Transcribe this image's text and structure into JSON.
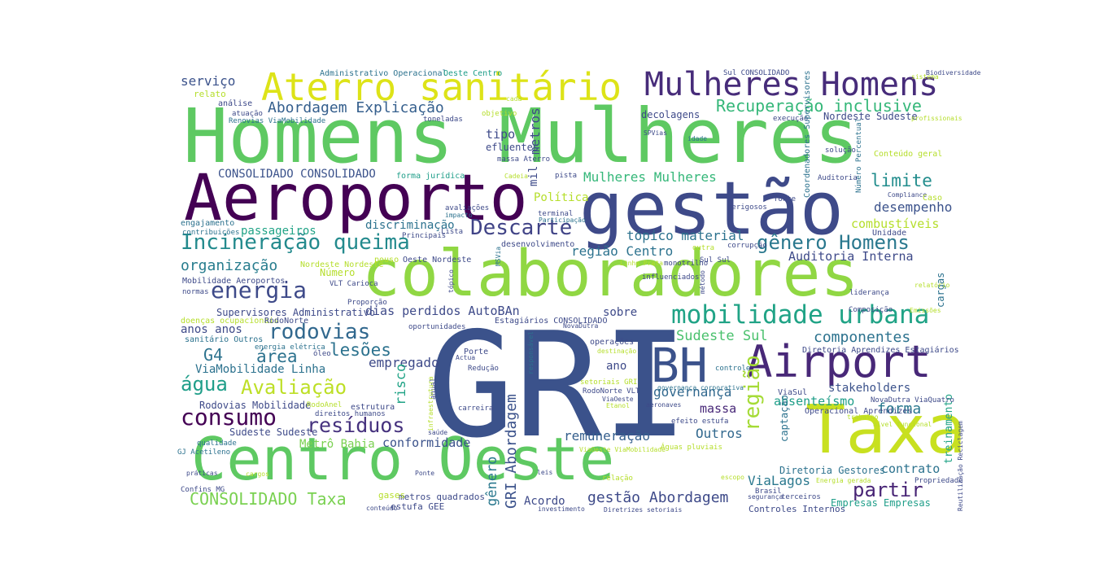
{
  "words": [
    {
      "text": "GRI",
      "color": "#3b528b"
    },
    {
      "text": "Homens Mulheres",
      "color": "#5ec962"
    },
    {
      "text": "colaboradores",
      "color": "#90d743"
    },
    {
      "text": "gestão",
      "color": "#3e4a89"
    },
    {
      "text": "Aeroporto",
      "color": "#440154"
    },
    {
      "text": "Centro Oeste",
      "color": "#5ec962"
    },
    {
      "text": "Taxa",
      "color": "#c8e020"
    },
    {
      "text": "Airport",
      "color": "#482878"
    },
    {
      "text": "BH",
      "color": "#3b528b"
    },
    {
      "text": "Aterro sanitário",
      "color": "#dde318"
    },
    {
      "text": "Mulheres Homens",
      "color": "#472c7a"
    },
    {
      "text": "mobilidade urbana",
      "color": "#20a386"
    },
    {
      "text": "Incineração queima",
      "color": "#238a8d"
    },
    {
      "text": "consumo",
      "color": "#440154"
    },
    {
      "text": "energia",
      "color": "#3e4a89"
    },
    {
      "text": "Descarte",
      "color": "#414487"
    },
    {
      "text": "rodovias",
      "color": "#31688e"
    },
    {
      "text": "gênero Homens",
      "color": "#2a788e"
    },
    {
      "text": "resíduos",
      "color": "#46327e"
    },
    {
      "text": "Avaliação",
      "color": "#bddf26"
    },
    {
      "text": "partir",
      "color": "#482475"
    },
    {
      "text": "água",
      "color": "#1f9e89"
    },
    {
      "text": "CONSOLIDADO Taxa",
      "color": "#7ad151"
    },
    {
      "text": "Recuperação inclusive",
      "color": "#35b779"
    },
    {
      "text": "limite",
      "color": "#228d8d"
    },
    {
      "text": "área",
      "color": "#2c728e"
    },
    {
      "text": "lesões",
      "color": "#2c728e"
    },
    {
      "text": "G4",
      "color": "#2c728e"
    },
    {
      "text": "região",
      "color": "#a5db36"
    },
    {
      "text": "Abordagem Explicação",
      "color": "#355f8d"
    },
    {
      "text": "componentes",
      "color": "#2c728e"
    },
    {
      "text": "forma",
      "color": "#2a788e"
    },
    {
      "text": "organização",
      "color": "#287d8e"
    },
    {
      "text": "GRI Abordagem",
      "color": "#3b528b"
    },
    {
      "text": "gestão Abordagem",
      "color": "#3e4a89"
    },
    {
      "text": "Sudeste Sul",
      "color": "#4ac16d"
    },
    {
      "text": "contrato",
      "color": "#2c728e"
    },
    {
      "text": "gênero",
      "color": "#2a788e"
    },
    {
      "text": "desempenho",
      "color": "#3b528b"
    },
    {
      "text": "Outros",
      "color": "#31688e"
    },
    {
      "text": "governança",
      "color": "#31688e"
    },
    {
      "text": "Mulheres Mulheres",
      "color": "#35b779"
    },
    {
      "text": "tópico material",
      "color": "#2c728e"
    },
    {
      "text": "região Centro",
      "color": "#2c728e"
    },
    {
      "text": "conformidade",
      "color": "#3b528b"
    },
    {
      "text": "empregado",
      "color": "#3e4a89"
    },
    {
      "text": "remuneração",
      "color": "#355f8d"
    },
    {
      "text": "absenteísmo",
      "color": "#1f9e89"
    },
    {
      "text": "ViaLagos",
      "color": "#2a788e"
    },
    {
      "text": "serviço",
      "color": "#3b528b"
    },
    {
      "text": "massa",
      "color": "#482878"
    },
    {
      "text": "dias perdidos AutoBAn",
      "color": "#3e4a89"
    },
    {
      "text": "tipo",
      "color": "#3e4a89"
    },
    {
      "text": "metros",
      "color": "#3e4a89"
    },
    {
      "text": "combustíveis",
      "color": "#b5de2b"
    },
    {
      "text": "Auditoria Interna",
      "color": "#3e4a89"
    },
    {
      "text": "anos anos",
      "color": "#3e4a89"
    },
    {
      "text": "stakeholders",
      "color": "#3b528b"
    },
    {
      "text": "risco",
      "color": "#20a386"
    },
    {
      "text": "CONSOLIDADO CONSOLIDADO",
      "color": "#3b528b"
    },
    {
      "text": "ViaMobilidade Linha",
      "color": "#2c728e"
    },
    {
      "text": "sobre",
      "color": "#3e4a89"
    },
    {
      "text": "discriminação",
      "color": "#2c728e"
    },
    {
      "text": "passageiros",
      "color": "#20a386"
    },
    {
      "text": "Política",
      "color": "#b5de2b"
    },
    {
      "text": "Metrô Bahia",
      "color": "#7ad151"
    },
    {
      "text": "Acordo",
      "color": "#3e4a89"
    },
    {
      "text": "ano",
      "color": "#3e4a89"
    },
    {
      "text": "efluentes",
      "color": "#3e4a89"
    },
    {
      "text": "mil",
      "color": "#3e4a89"
    },
    {
      "text": "treinamento",
      "color": "#20a386"
    },
    {
      "text": "captação",
      "color": "#2c728e"
    },
    {
      "text": "cargas",
      "color": "#2c728e"
    },
    {
      "text": "Rodovias Mobilidade",
      "color": "#3e4a89"
    },
    {
      "text": "Sudeste Sudeste",
      "color": "#3e4a89"
    },
    {
      "text": "Supervisores Administrativo",
      "color": "#3e4a89"
    },
    {
      "text": "Número",
      "color": "#b5de2b"
    },
    {
      "text": "decolagens",
      "color": "#3e4a89"
    },
    {
      "text": "Nordeste Sudeste",
      "color": "#3e4a89"
    },
    {
      "text": "Diretoria Gestores",
      "color": "#2c728e"
    },
    {
      "text": "Empresas Empresas",
      "color": "#1f9e89"
    },
    {
      "text": "estufa GEE",
      "color": "#3e4a89"
    },
    {
      "text": "metros quadrados",
      "color": "#3e4a89"
    },
    {
      "text": "gases",
      "color": "#b5de2b"
    },
    {
      "text": "Controles Internos",
      "color": "#3e4a89"
    },
    {
      "text": "Administrativo Operacional",
      "color": "#2c728e"
    },
    {
      "text": "Oeste Centro",
      "color": "#1f9e89"
    },
    {
      "text": "análise",
      "color": "#3e4a89"
    },
    {
      "text": "relato",
      "color": "#b5de2b"
    },
    {
      "text": "atuação",
      "color": "#3e4a89"
    },
    {
      "text": "Renovias ViaMobilidade",
      "color": "#2c728e"
    },
    {
      "text": "toneladas",
      "color": "#3e4a89"
    },
    {
      "text": "objetivo",
      "color": "#b5de2b"
    },
    {
      "text": "cada",
      "color": "#b5de2b"
    },
    {
      "text": "Sul CONSOLIDADO",
      "color": "#3e4a89"
    },
    {
      "text": "sistema",
      "color": "#b5de2b"
    },
    {
      "text": "Biodiversidade",
      "color": "#3e4a89"
    },
    {
      "text": "execução",
      "color": "#3e4a89"
    },
    {
      "text": "profissionais",
      "color": "#b5de2b"
    },
    {
      "text": "SPVias",
      "color": "#3e4a89"
    },
    {
      "text": "idade",
      "color": "#2c728e"
    },
    {
      "text": "massa Aterro",
      "color": "#3e4a89"
    },
    {
      "text": "solução",
      "color": "#3e4a89"
    },
    {
      "text": "Conteúdo geral",
      "color": "#b5de2b"
    },
    {
      "text": "forma jurídica",
      "color": "#1f9e89"
    },
    {
      "text": "Cadeia",
      "color": "#b5de2b"
    },
    {
      "text": "pista",
      "color": "#3e4a89"
    },
    {
      "text": "Auditoria",
      "color": "#3e4a89"
    },
    {
      "text": "Compliance",
      "color": "#3e4a89"
    },
    {
      "text": "Caso",
      "color": "#b5de2b"
    },
    {
      "text": "fonte",
      "color": "#3e4a89"
    },
    {
      "text": "perigosos",
      "color": "#3e4a89"
    },
    {
      "text": "Unidade",
      "color": "#3e4a89"
    },
    {
      "text": "engajamento",
      "color": "#2c728e"
    },
    {
      "text": "contribuições",
      "color": "#2c728e"
    },
    {
      "text": "Principais",
      "color": "#3e4a89"
    },
    {
      "text": "Lista",
      "color": "#3e4a89"
    },
    {
      "text": "terminal",
      "color": "#3e4a89"
    },
    {
      "text": "Participação",
      "color": "#2c728e"
    },
    {
      "text": "avaliações",
      "color": "#3e4a89"
    },
    {
      "text": "impacto",
      "color": "#2c728e"
    },
    {
      "text": "desenvolvimento",
      "color": "#3e4a89"
    },
    {
      "text": "outra",
      "color": "#b5de2b"
    },
    {
      "text": "corrupção",
      "color": "#3e4a89"
    },
    {
      "text": "Sul Sul",
      "color": "#3e4a89"
    },
    {
      "text": "pouso",
      "color": "#b5de2b"
    },
    {
      "text": "Oeste Nordeste",
      "color": "#3e4a89"
    },
    {
      "text": "Nordeste Nordeste",
      "color": "#b5de2b"
    },
    {
      "text": "Linha Prata",
      "color": "#b5de2b"
    },
    {
      "text": "monotrilho",
      "color": "#3e4a89"
    },
    {
      "text": "influenciados",
      "color": "#3e4a89"
    },
    {
      "text": "liderança",
      "color": "#3e4a89"
    },
    {
      "text": "relatório",
      "color": "#b5de2b"
    },
    {
      "text": "Mobilidade Aeroportos",
      "color": "#3e4a89"
    },
    {
      "text": "VLT Carioca",
      "color": "#3e4a89"
    },
    {
      "text": "normas",
      "color": "#3e4a89"
    },
    {
      "text": "Proporção",
      "color": "#3e4a89"
    },
    {
      "text": "Composição",
      "color": "#3e4a89"
    },
    {
      "text": "Emissões",
      "color": "#b5de2b"
    },
    {
      "text": "doenças ocupacionais",
      "color": "#b5de2b"
    },
    {
      "text": "RodoNorte",
      "color": "#3e4a89"
    },
    {
      "text": "Estagiários CONSOLIDADO",
      "color": "#3e4a89"
    },
    {
      "text": "oportunidades",
      "color": "#3e4a89"
    },
    {
      "text": "NovaDutra",
      "color": "#3e4a89"
    },
    {
      "text": "operações",
      "color": "#3e4a89"
    },
    {
      "text": "destinação",
      "color": "#b5de2b"
    },
    {
      "text": "sanitário Outros",
      "color": "#2c728e"
    },
    {
      "text": "energia elétrica",
      "color": "#2c728e"
    },
    {
      "text": "óleo",
      "color": "#3e4a89"
    },
    {
      "text": "Porte",
      "color": "#3e4a89"
    },
    {
      "text": "Actua",
      "color": "#3e4a89"
    },
    {
      "text": "Diretoria Aprendizes Estagiários",
      "color": "#3e4a89"
    },
    {
      "text": "controle",
      "color": "#2c728e"
    },
    {
      "text": "Redução",
      "color": "#3e4a89"
    },
    {
      "text": "setoriais GRI",
      "color": "#b5de2b"
    },
    {
      "text": "governança corporativa",
      "color": "#2c728e"
    },
    {
      "text": "RodoNorte VLT",
      "color": "#3e4a89"
    },
    {
      "text": "ViaOeste",
      "color": "#3e4a89"
    },
    {
      "text": "Etanol",
      "color": "#b5de2b"
    },
    {
      "text": "aeronaves",
      "color": "#3e4a89"
    },
    {
      "text": "ViaSul",
      "color": "#3e4a89"
    },
    {
      "text": "NovaDutra ViaQuatro",
      "color": "#3e4a89"
    },
    {
      "text": "Operacional Aprendizes",
      "color": "#3e4a89"
    },
    {
      "text": "trabalho",
      "color": "#b5de2b"
    },
    {
      "text": "nível funcional",
      "color": "#b5de2b"
    },
    {
      "text": "RodoAnel",
      "color": "#b5de2b"
    },
    {
      "text": "estrutura",
      "color": "#3e4a89"
    },
    {
      "text": "direitos humanos",
      "color": "#3e4a89"
    },
    {
      "text": "carreira",
      "color": "#3e4a89"
    },
    {
      "text": "efeito estufa",
      "color": "#3e4a89"
    },
    {
      "text": "anual",
      "color": "#3e4a89"
    },
    {
      "text": "saúde",
      "color": "#3e4a89"
    },
    {
      "text": "qualidade",
      "color": "#2c728e"
    },
    {
      "text": "GJ Acetileno",
      "color": "#2c728e"
    },
    {
      "text": "ViaOeste ViaMobilidade",
      "color": "#b5de2b"
    },
    {
      "text": "Águas pluviais",
      "color": "#b5de2b"
    },
    {
      "text": "práticas",
      "color": "#3e4a89"
    },
    {
      "text": "cargos",
      "color": "#b5de2b"
    },
    {
      "text": "Ponte",
      "color": "#3e4a89"
    },
    {
      "text": "leis",
      "color": "#3e4a89"
    },
    {
      "text": "relação",
      "color": "#b5de2b"
    },
    {
      "text": "escopo",
      "color": "#b5de2b"
    },
    {
      "text": "Energia gerada",
      "color": "#b5de2b"
    },
    {
      "text": "Propriedade",
      "color": "#3e4a89"
    },
    {
      "text": "Brasil",
      "color": "#3e4a89"
    },
    {
      "text": "segurança",
      "color": "#3e4a89"
    },
    {
      "text": "terceiros",
      "color": "#3e4a89"
    },
    {
      "text": "Confins MG",
      "color": "#3e4a89"
    },
    {
      "text": "conteúdo",
      "color": "#3e4a89"
    },
    {
      "text": "investimento",
      "color": "#3e4a89"
    },
    {
      "text": "Diretrizes setoriais",
      "color": "#3e4a89"
    },
    {
      "text": "Coordenadores Supervisores",
      "color": "#2c728e"
    },
    {
      "text": "Número Percentual",
      "color": "#2c728e"
    },
    {
      "text": "MSVia",
      "color": "#2c728e"
    },
    {
      "text": "tópico",
      "color": "#3e4a89"
    },
    {
      "text": "método",
      "color": "#3e4a89"
    },
    {
      "text": "responsável",
      "color": "#2c728e"
    },
    {
      "text": "infraestrutura",
      "color": "#b5de2b"
    },
    {
      "text": "Reutilização Reciclagem",
      "color": "#3e4a89"
    }
  ]
}
